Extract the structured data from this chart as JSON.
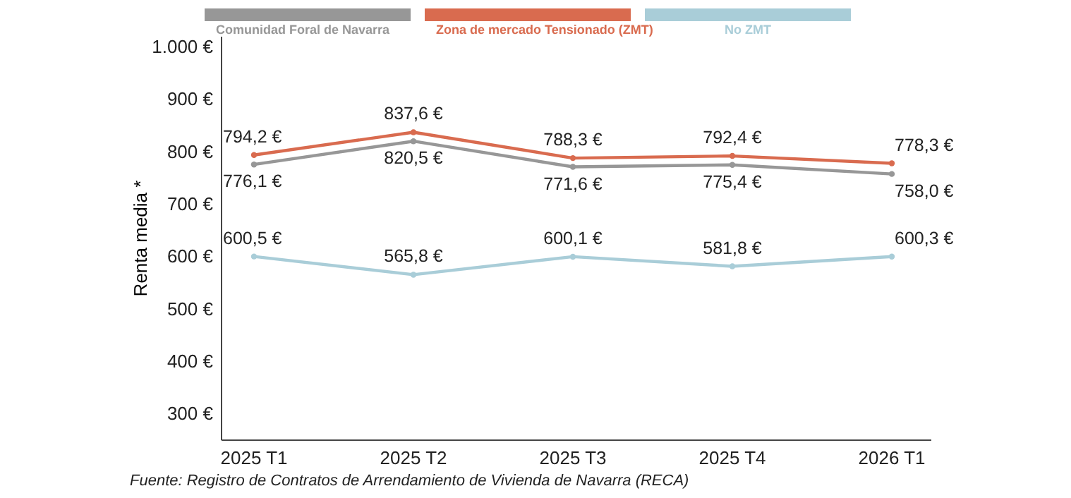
{
  "chart_data": {
    "type": "line",
    "ylabel": "Renta media *",
    "categories": [
      "2025 T1",
      "2025 T2",
      "2025 T3",
      "2025 T4",
      "2026 T1"
    ],
    "series": [
      {
        "name": "Comunidad Foral de Navarra",
        "color": "#979797",
        "values": [
          776.1,
          820.5,
          771.6,
          775.4,
          758.0
        ],
        "value_labels": [
          "776,1 €",
          "820,5 €",
          "771,6 €",
          "775,4 €",
          "758,0 €"
        ]
      },
      {
        "name": "Zona de mercado Tensionado (ZMT)",
        "color": "#d96b4f",
        "values": [
          794.2,
          837.6,
          788.3,
          792.4,
          778.3
        ],
        "value_labels": [
          "794,2 €",
          "837,6 €",
          "788,3 €",
          "792,4 €",
          "778,3 €"
        ]
      },
      {
        "name": "No ZMT",
        "color": "#a9cdd8",
        "values": [
          600.5,
          565.8,
          600.1,
          581.8,
          600.3
        ],
        "value_labels": [
          "600,5 €",
          "565,8 €",
          "600,1 €",
          "581,8 €",
          "600,3 €"
        ]
      }
    ],
    "ylim": [
      250,
      1020
    ],
    "yticks": [
      {
        "value": 300,
        "label": "300 €"
      },
      {
        "value": 400,
        "label": "400 €"
      },
      {
        "value": 500,
        "label": "500 €"
      },
      {
        "value": 600,
        "label": "600 €"
      },
      {
        "value": 700,
        "label": "700 €"
      },
      {
        "value": 800,
        "label": "800 €"
      },
      {
        "value": 900,
        "label": "900 €"
      },
      {
        "value": 1000,
        "label": "1.000 €"
      }
    ],
    "grid": false,
    "legend": "top",
    "marker": "circle",
    "line_style": "solid",
    "annotations": [
      "Fuente: Registro de Contratos de Arrendamiento de Vivienda de Navarra (RECA)"
    ]
  }
}
